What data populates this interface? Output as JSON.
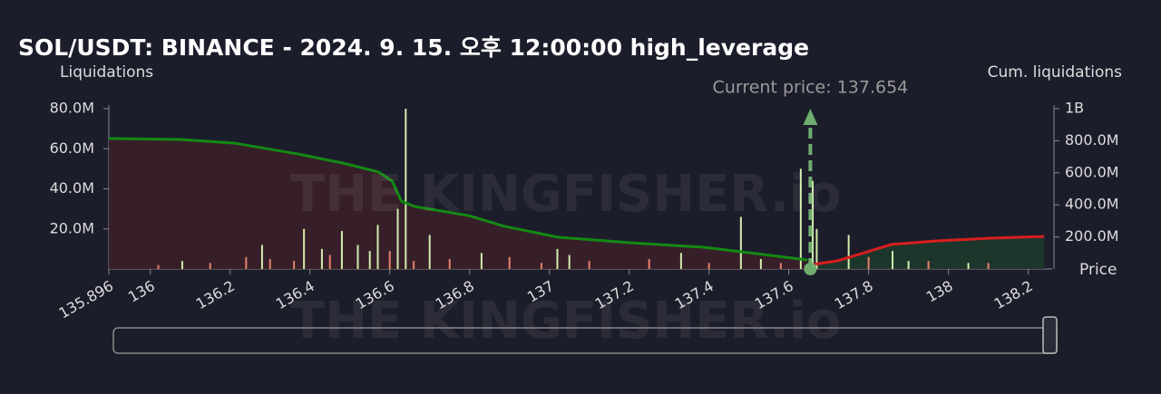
{
  "chart_data": {
    "type": "bar",
    "title": "SOL/USDT: BINANCE - 2024. 9. 15. 오후 12:00:00 high_leverage",
    "y_label": "Liquidations",
    "y2_label": "Cum. liquidations",
    "x_label": "Price",
    "watermark": "THE KINGFISHER.io",
    "annotation": {
      "text": "Current price: 137.654",
      "x": 137.654
    },
    "xlim": [
      135.896,
      138.26
    ],
    "xticks": [
      135.896,
      136,
      136.2,
      136.4,
      136.6,
      136.8,
      137,
      137.2,
      137.4,
      137.6,
      137.8,
      138,
      138.2
    ],
    "ylim": [
      0,
      80000000
    ],
    "yticks": [
      {
        "value": 20000000,
        "label": "20.0M"
      },
      {
        "value": 40000000,
        "label": "40.0M"
      },
      {
        "value": 60000000,
        "label": "60.0M"
      },
      {
        "value": 80000000,
        "label": "80.0M"
      }
    ],
    "y2lim": [
      0,
      1000000000
    ],
    "y2ticks": [
      {
        "value": 200000000,
        "label": "200.0M"
      },
      {
        "value": 400000000,
        "label": "400.0M"
      },
      {
        "value": 600000000,
        "label": "600.0M"
      },
      {
        "value": 800000000,
        "label": "800.0M"
      },
      {
        "value": 1000000000,
        "label": "1B"
      }
    ],
    "series": [
      {
        "color": "#d2ecaa",
        "x": [
          136.08,
          136.28,
          136.385,
          136.43,
          136.48,
          136.52,
          136.55,
          136.57,
          136.62,
          136.64,
          136.7,
          136.83,
          137.02,
          137.05,
          137.33,
          137.48,
          137.53,
          137.63,
          137.66,
          137.67,
          137.75,
          137.86,
          137.9,
          138.05
        ],
        "values": [
          4000000,
          12000000,
          20000000,
          10000000,
          19000000,
          12000000,
          9000000,
          22000000,
          30000000,
          80000000,
          17000000,
          8000000,
          10000000,
          7000000,
          8000000,
          26000000,
          5000000,
          50000000,
          44000000,
          20000000,
          17000000,
          9000000,
          4000000,
          3000000
        ]
      },
      {
        "color": "#e8806c",
        "x": [
          136.02,
          136.15,
          136.24,
          136.3,
          136.36,
          136.45,
          136.6,
          136.66,
          136.75,
          136.9,
          136.98,
          137.1,
          137.25,
          137.4,
          137.58,
          137.8,
          137.95,
          138.1
        ],
        "values": [
          2000000,
          3000000,
          6000000,
          5000000,
          4000000,
          7000000,
          9000000,
          4000000,
          5000000,
          6000000,
          3000000,
          4000000,
          5000000,
          3000000,
          3000000,
          6000000,
          4000000,
          3000000
        ]
      }
    ],
    "lines": [
      {
        "type": "line",
        "axis": "y2",
        "color": "#138a13",
        "fill": "#3a2029",
        "x": [
          135.896,
          136.076,
          136.211,
          136.369,
          136.482,
          136.572,
          136.606,
          136.629,
          136.662,
          136.798,
          136.888,
          137.023,
          137.203,
          137.384,
          137.519,
          137.609,
          137.647
        ],
        "values": [
          814000000,
          808000000,
          785000000,
          718000000,
          661000000,
          605000000,
          548000000,
          424000000,
          390000000,
          333000000,
          266000000,
          198000000,
          164000000,
          136000000,
          96000000,
          68000000,
          56000000
        ]
      },
      {
        "type": "line",
        "axis": "y2",
        "color": "#d81e1e",
        "fill": "#1e3a2c",
        "x": [
          137.661,
          137.722,
          137.79,
          137.857,
          137.97,
          138.105,
          138.24
        ],
        "values": [
          28000000,
          51000000,
          102000000,
          153000000,
          175000000,
          192000000,
          203000000
        ]
      }
    ]
  }
}
